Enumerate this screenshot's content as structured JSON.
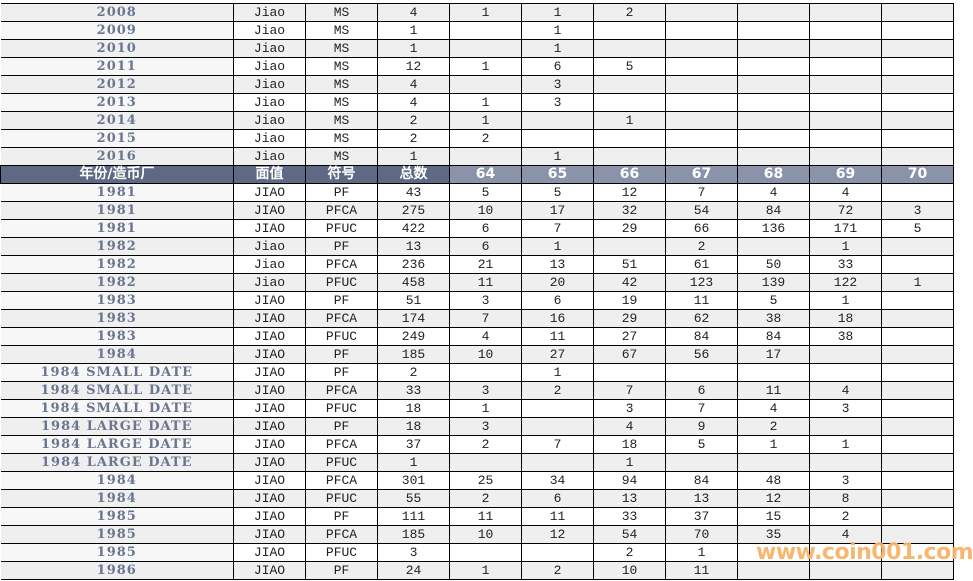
{
  "header": {
    "year": "年份/造币厂",
    "denom": "面值",
    "symbol": "符号",
    "total": "总数",
    "grades": [
      "64",
      "65",
      "66",
      "67",
      "68",
      "69",
      "70"
    ]
  },
  "rows_before": [
    [
      "2008",
      "Jiao",
      "MS",
      "4",
      "1",
      "1",
      "2",
      "",
      "",
      "",
      ""
    ],
    [
      "2009",
      "Jiao",
      "MS",
      "1",
      "",
      "1",
      "",
      "",
      "",
      "",
      ""
    ],
    [
      "2010",
      "Jiao",
      "MS",
      "1",
      "",
      "1",
      "",
      "",
      "",
      "",
      ""
    ],
    [
      "2011",
      "Jiao",
      "MS",
      "12",
      "1",
      "6",
      "5",
      "",
      "",
      "",
      ""
    ],
    [
      "2012",
      "Jiao",
      "MS",
      "4",
      "",
      "3",
      "",
      "",
      "",
      "",
      ""
    ],
    [
      "2013",
      "Jiao",
      "MS",
      "4",
      "1",
      "3",
      "",
      "",
      "",
      "",
      ""
    ],
    [
      "2014",
      "Jiao",
      "MS",
      "2",
      "1",
      "",
      "1",
      "",
      "",
      "",
      ""
    ],
    [
      "2015",
      "Jiao",
      "MS",
      "2",
      "2",
      "",
      "",
      "",
      "",
      "",
      ""
    ],
    [
      "2016",
      "Jiao",
      "MS",
      "1",
      "",
      "1",
      "",
      "",
      "",
      "",
      ""
    ]
  ],
  "rows_after": [
    [
      "1981",
      "JIAO",
      "PF",
      "43",
      "5",
      "5",
      "12",
      "7",
      "4",
      "4",
      ""
    ],
    [
      "1981",
      "JIAO",
      "PFCA",
      "275",
      "10",
      "17",
      "32",
      "54",
      "84",
      "72",
      "3"
    ],
    [
      "1981",
      "JIAO",
      "PFUC",
      "422",
      "6",
      "7",
      "29",
      "66",
      "136",
      "171",
      "5"
    ],
    [
      "1982",
      "Jiao",
      "PF",
      "13",
      "6",
      "1",
      "",
      "2",
      "",
      "1",
      ""
    ],
    [
      "1982",
      "Jiao",
      "PFCA",
      "236",
      "21",
      "13",
      "51",
      "61",
      "50",
      "33",
      ""
    ],
    [
      "1982",
      "Jiao",
      "PFUC",
      "458",
      "11",
      "20",
      "42",
      "123",
      "139",
      "122",
      "1"
    ],
    [
      "1983",
      "JIAO",
      "PF",
      "51",
      "3",
      "6",
      "19",
      "11",
      "5",
      "1",
      ""
    ],
    [
      "1983",
      "JIAO",
      "PFCA",
      "174",
      "7",
      "16",
      "29",
      "62",
      "38",
      "18",
      ""
    ],
    [
      "1983",
      "JIAO",
      "PFUC",
      "249",
      "4",
      "11",
      "27",
      "84",
      "84",
      "38",
      ""
    ],
    [
      "1984",
      "JIAO",
      "PF",
      "185",
      "10",
      "27",
      "67",
      "56",
      "17",
      "",
      ""
    ],
    [
      "1984 SMALL DATE",
      "JIAO",
      "PF",
      "2",
      "",
      "1",
      "",
      "",
      "",
      "",
      ""
    ],
    [
      "1984 SMALL DATE",
      "JIAO",
      "PFCA",
      "33",
      "3",
      "2",
      "7",
      "6",
      "11",
      "4",
      ""
    ],
    [
      "1984 SMALL DATE",
      "JIAO",
      "PFUC",
      "18",
      "1",
      "",
      "3",
      "7",
      "4",
      "3",
      ""
    ],
    [
      "1984 LARGE DATE",
      "JIAO",
      "PF",
      "18",
      "3",
      "",
      "4",
      "9",
      "2",
      "",
      ""
    ],
    [
      "1984 LARGE DATE",
      "JIAO",
      "PFCA",
      "37",
      "2",
      "7",
      "18",
      "5",
      "1",
      "1",
      ""
    ],
    [
      "1984 LARGE DATE",
      "JIAO",
      "PFUC",
      "1",
      "",
      "",
      "1",
      "",
      "",
      "",
      ""
    ],
    [
      "1984",
      "JIAO",
      "PFCA",
      "301",
      "25",
      "34",
      "94",
      "84",
      "48",
      "3",
      ""
    ],
    [
      "1984",
      "JIAO",
      "PFUC",
      "55",
      "2",
      "6",
      "13",
      "13",
      "12",
      "8",
      ""
    ],
    [
      "1985",
      "JIAO",
      "PF",
      "111",
      "11",
      "11",
      "33",
      "37",
      "15",
      "2",
      ""
    ],
    [
      "1985",
      "JIAO",
      "PFCA",
      "185",
      "10",
      "12",
      "54",
      "70",
      "35",
      "4",
      ""
    ],
    [
      "1985",
      "JIAO",
      "PFUC",
      "3",
      "",
      "",
      "2",
      "1",
      "",
      "",
      ""
    ],
    [
      "1986",
      "JIAO",
      "PF",
      "24",
      "1",
      "2",
      "10",
      "11",
      "",
      "",
      ""
    ]
  ],
  "watermark": "www.coin001.com",
  "colors": {
    "header_bg": "#5e6a84",
    "year_text": "#6a7590",
    "watermark": "#f7b46a"
  }
}
